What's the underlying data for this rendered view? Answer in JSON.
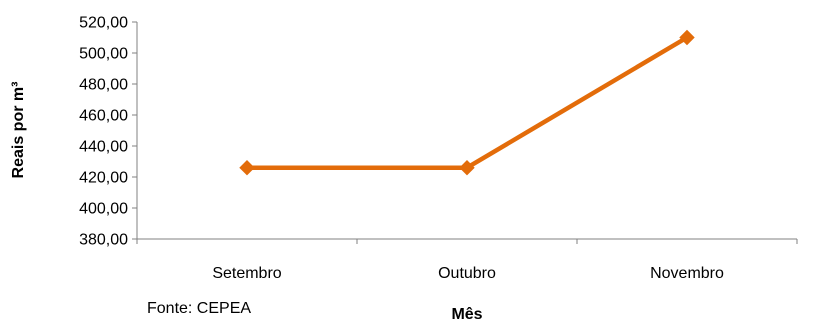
{
  "chart_data": {
    "type": "line",
    "categories": [
      "Setembro",
      "Outubro",
      "Novembro"
    ],
    "series": [
      {
        "values": [
          426,
          426,
          510
        ]
      }
    ],
    "xlabel": "Mês",
    "ylabel": "Reais por m³",
    "ylim": [
      380,
      520
    ],
    "yticks": [
      "380,00",
      "400,00",
      "420,00",
      "440,00",
      "460,00",
      "480,00",
      "500,00",
      "520,00"
    ],
    "source": "Fonte: CEPEA",
    "grid": false,
    "line_color": "#E36C0A",
    "marker": "diamond"
  }
}
